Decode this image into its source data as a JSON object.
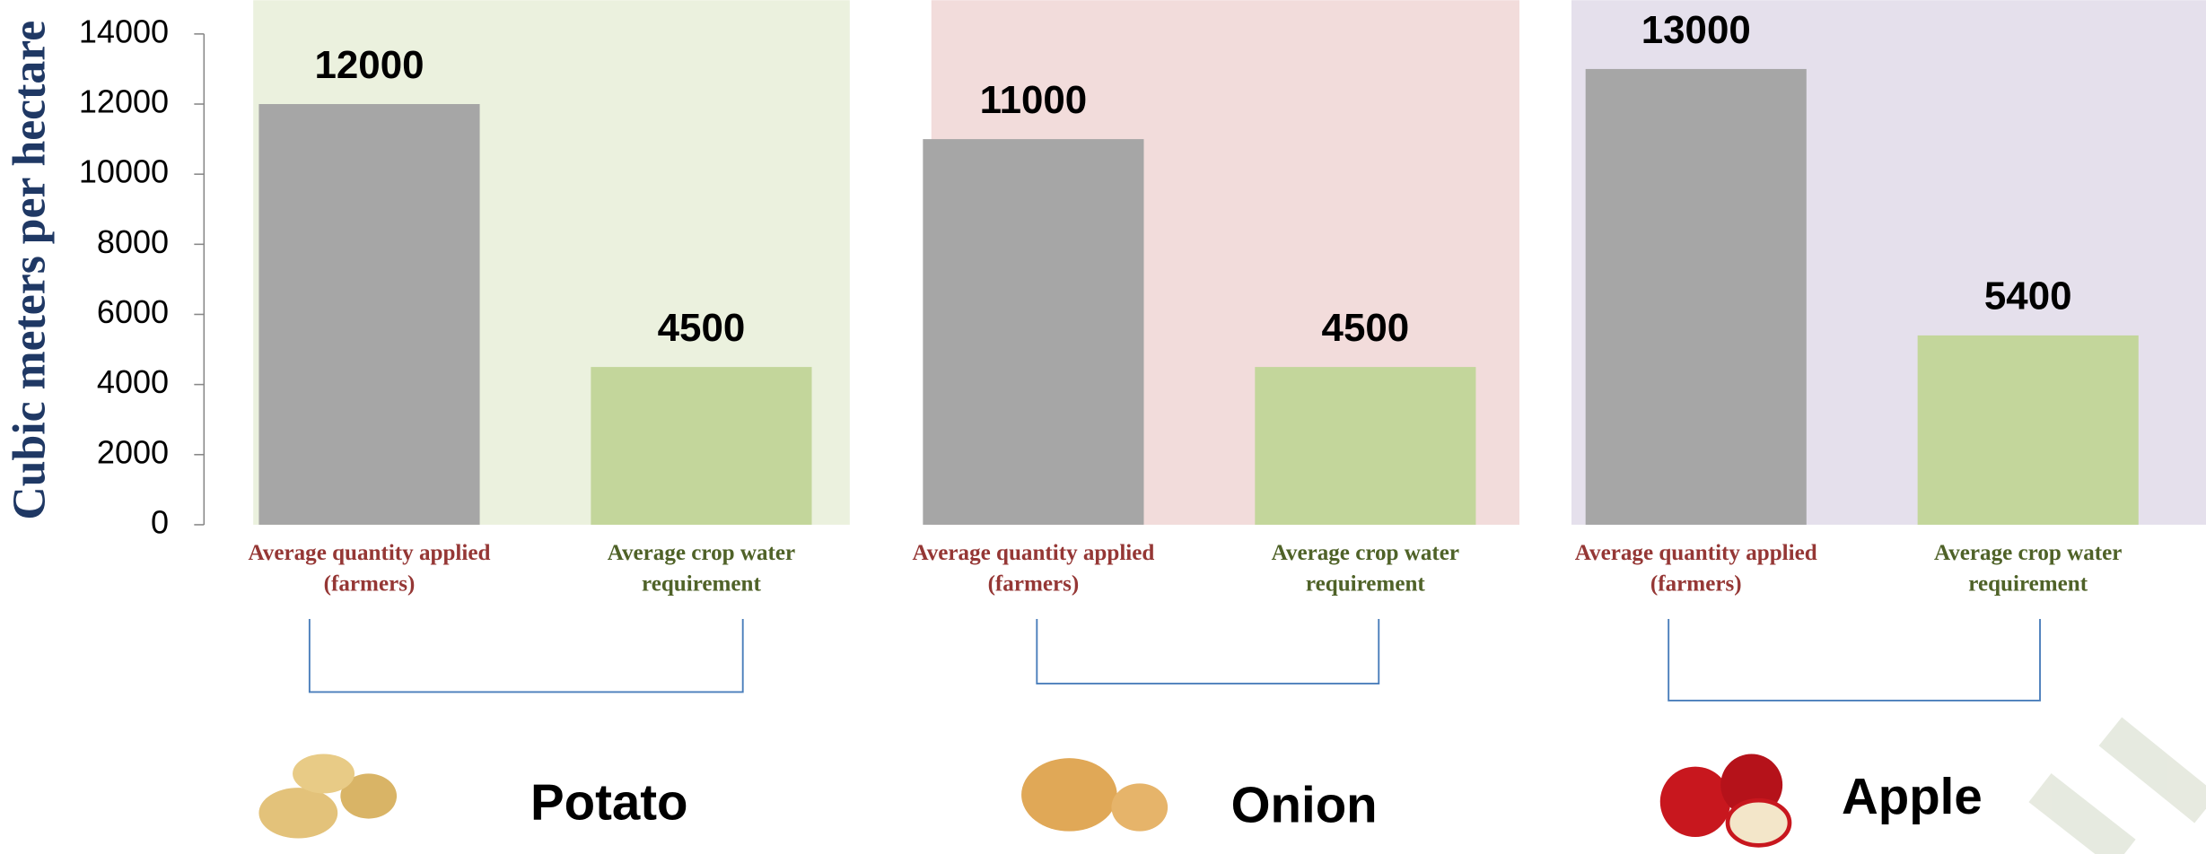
{
  "chart_data": [
    {
      "type": "bar",
      "name": "Potato",
      "ylabel": "Cubic meters per hectare",
      "categories": [
        "Average quantity applied (farmers)",
        "Average crop water requirement"
      ],
      "values": [
        12000,
        4500
      ],
      "colors": [
        "#a6a6a6",
        "#c3d69b"
      ],
      "label_colors": [
        "#953735",
        "#4f6228"
      ],
      "background": "#ebf1de",
      "ylim": [
        0,
        14000
      ],
      "yticks": [
        0,
        2000,
        4000,
        6000,
        8000,
        10000,
        12000,
        14000
      ]
    },
    {
      "type": "bar",
      "name": "Onion",
      "categories": [
        "Average quantity applied (farmers)",
        "Average crop water requirement"
      ],
      "values": [
        11000,
        4500
      ],
      "colors": [
        "#a6a6a6",
        "#c3d69b"
      ],
      "label_colors": [
        "#953735",
        "#4f6228"
      ],
      "background": "#f2dcdb",
      "ylim": [
        0,
        14000
      ]
    },
    {
      "type": "bar",
      "name": "Apple",
      "categories": [
        "Average quantity applied (farmers)",
        "Average crop water requirement"
      ],
      "values": [
        13000,
        5400
      ],
      "colors": [
        "#a6a6a6",
        "#c3d69b"
      ],
      "label_colors": [
        "#953735",
        "#4f6228"
      ],
      "background": "#e5e0ec",
      "ylim": [
        0,
        14000
      ]
    }
  ]
}
